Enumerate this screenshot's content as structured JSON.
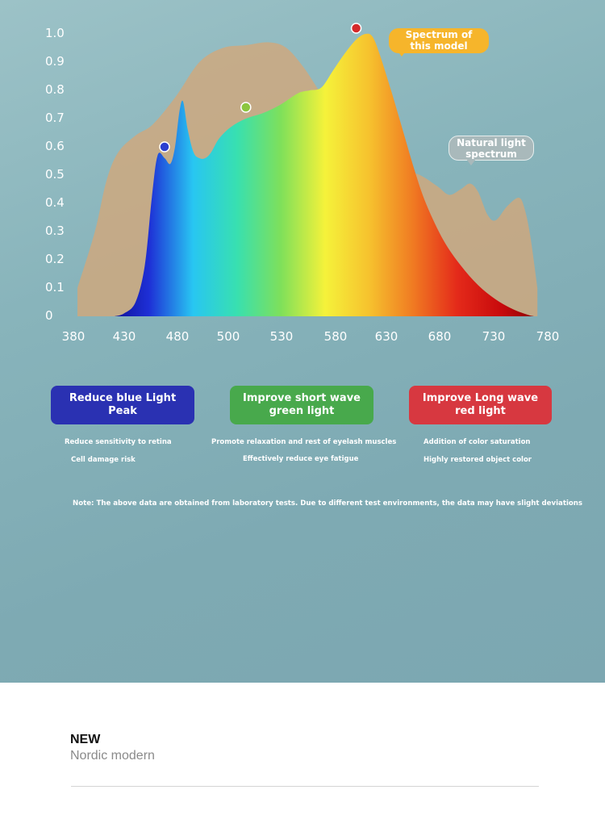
{
  "chart_data": {
    "type": "area",
    "xlim": [
      380,
      780
    ],
    "ylim": [
      0,
      1.0
    ],
    "x_ticks": [
      "380",
      "430",
      "480",
      "500",
      "530",
      "580",
      "630",
      "680",
      "730",
      "780"
    ],
    "y_ticks": [
      "0",
      "0.1",
      "0.2",
      "0.3",
      "0.4",
      "0.5",
      "0.6",
      "0.7",
      "0.8",
      "0.9",
      "1.0"
    ],
    "series": [
      {
        "name": "Natural light spectrum",
        "points": [
          [
            380,
            0.1
          ],
          [
            395,
            0.3
          ],
          [
            405,
            0.48
          ],
          [
            415,
            0.58
          ],
          [
            430,
            0.64
          ],
          [
            445,
            0.68
          ],
          [
            465,
            0.78
          ],
          [
            485,
            0.9
          ],
          [
            505,
            0.95
          ],
          [
            525,
            0.96
          ],
          [
            545,
            0.97
          ],
          [
            560,
            0.95
          ],
          [
            575,
            0.88
          ],
          [
            588,
            0.8
          ],
          [
            600,
            0.74
          ],
          [
            615,
            0.68
          ],
          [
            630,
            0.62
          ],
          [
            645,
            0.57
          ],
          [
            660,
            0.52
          ],
          [
            675,
            0.5
          ],
          [
            690,
            0.46
          ],
          [
            700,
            0.43
          ],
          [
            710,
            0.45
          ],
          [
            718,
            0.47
          ],
          [
            725,
            0.44
          ],
          [
            733,
            0.36
          ],
          [
            740,
            0.34
          ],
          [
            750,
            0.39
          ],
          [
            760,
            0.42
          ],
          [
            765,
            0.38
          ],
          [
            770,
            0.28
          ],
          [
            776,
            0.1
          ]
        ]
      },
      {
        "name": "Spectrum of this model",
        "points": [
          [
            412,
            0
          ],
          [
            420,
            0.01
          ],
          [
            430,
            0.05
          ],
          [
            438,
            0.18
          ],
          [
            444,
            0.42
          ],
          [
            449,
            0.57
          ],
          [
            455,
            0.56
          ],
          [
            460,
            0.54
          ],
          [
            464,
            0.6
          ],
          [
            468,
            0.73
          ],
          [
            471,
            0.76
          ],
          [
            475,
            0.66
          ],
          [
            480,
            0.58
          ],
          [
            485,
            0.56
          ],
          [
            490,
            0.56
          ],
          [
            495,
            0.58
          ],
          [
            502,
            0.63
          ],
          [
            512,
            0.67
          ],
          [
            525,
            0.7
          ],
          [
            540,
            0.72
          ],
          [
            555,
            0.75
          ],
          [
            570,
            0.79
          ],
          [
            580,
            0.8
          ],
          [
            590,
            0.81
          ],
          [
            600,
            0.87
          ],
          [
            610,
            0.93
          ],
          [
            620,
            0.98
          ],
          [
            628,
            1.0
          ],
          [
            634,
            0.99
          ],
          [
            640,
            0.93
          ],
          [
            650,
            0.8
          ],
          [
            660,
            0.66
          ],
          [
            670,
            0.52
          ],
          [
            680,
            0.4
          ],
          [
            695,
            0.27
          ],
          [
            710,
            0.18
          ],
          [
            725,
            0.11
          ],
          [
            740,
            0.06
          ],
          [
            755,
            0.025
          ],
          [
            768,
            0.005
          ],
          [
            773,
            0
          ]
        ]
      }
    ],
    "markers": [
      {
        "x": 455,
        "y": 0.6,
        "color": "#2b3fd0"
      },
      {
        "x": 525,
        "y": 0.74,
        "color": "#8cc63f"
      },
      {
        "x": 620,
        "y": 1.02,
        "color": "#d42a2a"
      }
    ],
    "annotations": [
      {
        "text": "Spectrum of this model",
        "lines": [
          "Spectrum of",
          "this model"
        ]
      },
      {
        "text": "Natural light spectrum",
        "lines": [
          "Natural light",
          "spectrum"
        ]
      }
    ],
    "colors": {
      "natural_fill": "#d2a87a",
      "model_gradient": [
        "#0a0a8a",
        "#1e2fd6",
        "#28c6f2",
        "#38e0b0",
        "#7fe05a",
        "#f5f23a",
        "#f6c22e",
        "#f07a22",
        "#e42a1a",
        "#c80a0c",
        "#7a0000"
      ]
    }
  },
  "features": [
    {
      "title": "Reduce blue Light Peak",
      "title_lines": [
        "Reduce blue Light",
        "Peak"
      ],
      "desc": [
        "Reduce sensitivity to retina",
        "Cell damage risk"
      ]
    },
    {
      "title": "Improve short wave green light",
      "title_lines": [
        "Improve short wave",
        "green light"
      ],
      "desc": [
        "Promote relaxation and rest of eyelash muscles",
        "Effectively reduce eye fatigue"
      ]
    },
    {
      "title": "Improve Long wave red light",
      "title_lines": [
        "Improve Long wave",
        "red light"
      ],
      "desc": [
        "Addition of color saturation",
        "Highly restored object color"
      ]
    }
  ],
  "note": "Note: The above data are obtained from laboratory tests. Due to different test environments, the data may have slight deviations",
  "footer": {
    "new": "NEW",
    "subtitle": "Nordic modern"
  }
}
